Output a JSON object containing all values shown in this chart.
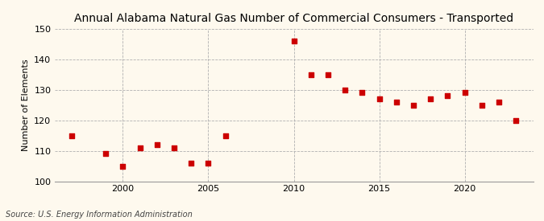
{
  "title": "Annual Alabama Natural Gas Number of Commercial Consumers - Transported",
  "ylabel": "Number of Elements",
  "source": "Source: U.S. Energy Information Administration",
  "background_color": "#fef9ee",
  "plot_bg_color": "#fef9ee",
  "marker_color": "#cc0000",
  "years": [
    1997,
    1999,
    2000,
    2001,
    2002,
    2003,
    2004,
    2005,
    2006,
    2010,
    2011,
    2012,
    2013,
    2014,
    2015,
    2016,
    2017,
    2018,
    2019,
    2020,
    2021,
    2022,
    2023
  ],
  "values": [
    115,
    109,
    105,
    111,
    112,
    111,
    106,
    106,
    115,
    146,
    135,
    135,
    130,
    129,
    127,
    126,
    125,
    127,
    128,
    129,
    125,
    126,
    120
  ],
  "ylim": [
    100,
    150
  ],
  "yticks": [
    100,
    110,
    120,
    130,
    140,
    150
  ],
  "xlim": [
    1996,
    2024
  ],
  "xticks": [
    2000,
    2005,
    2010,
    2015,
    2020
  ],
  "title_fontsize": 10,
  "ylabel_fontsize": 8,
  "tick_fontsize": 8,
  "source_fontsize": 7,
  "marker_size": 14
}
